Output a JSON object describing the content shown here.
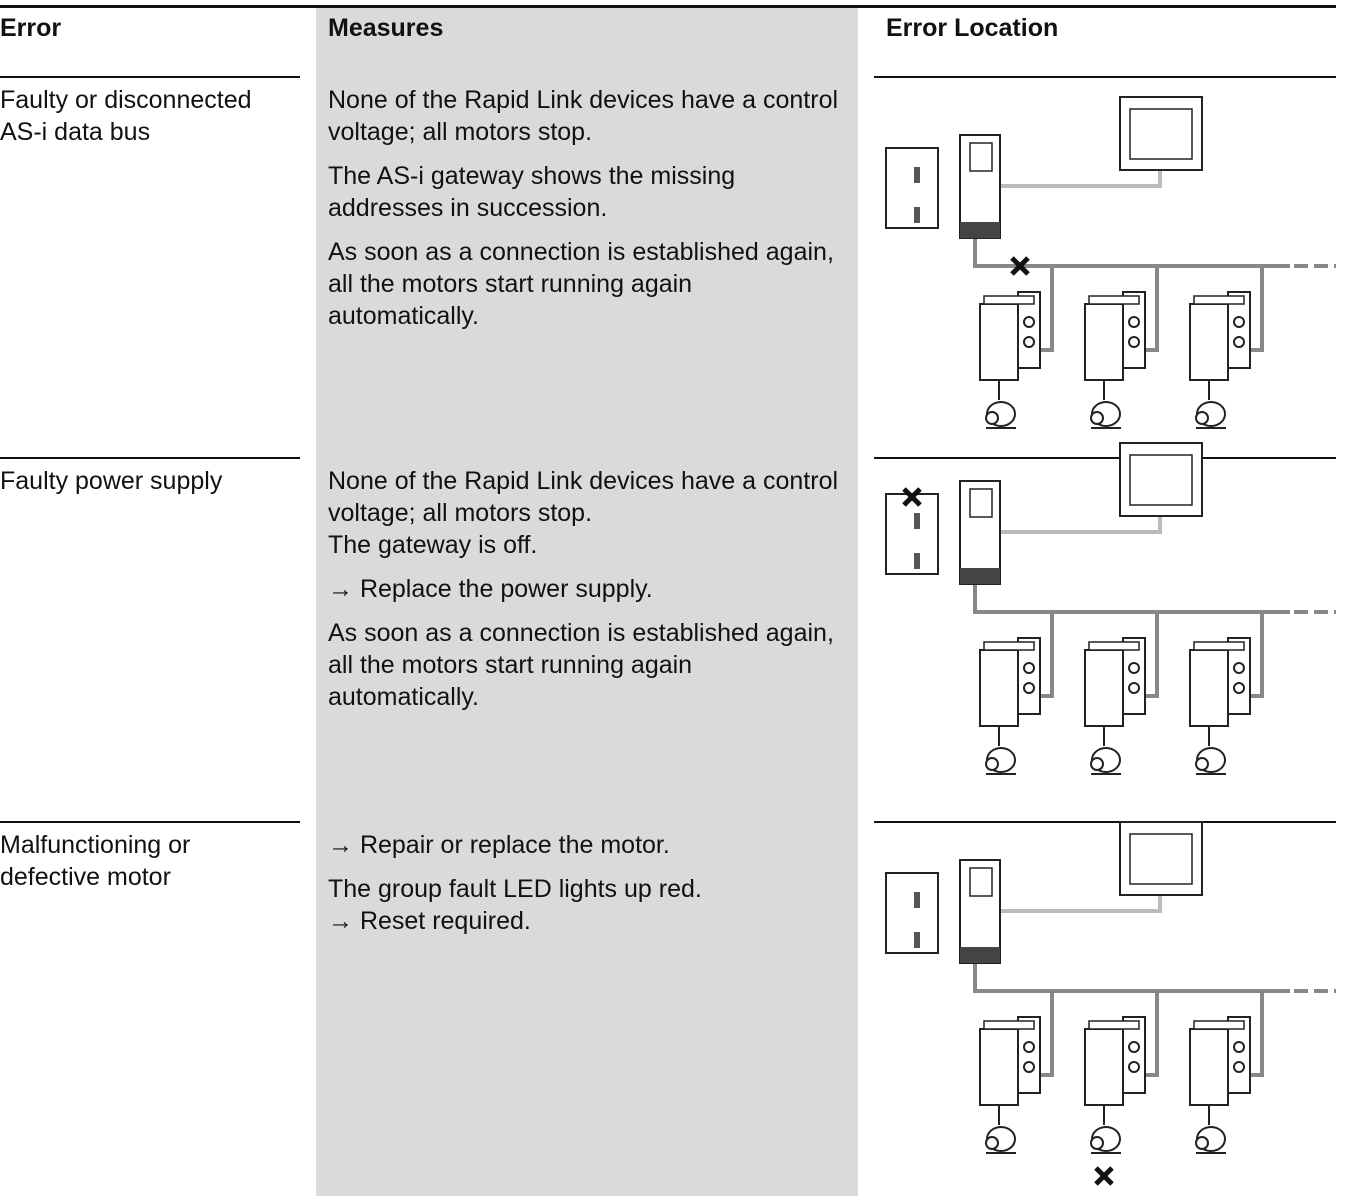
{
  "table": {
    "header": [
      "Error",
      "Measures",
      "Error Location"
    ],
    "rows": [
      {
        "error": "Faulty or disconnected AS-i data bus",
        "measures": [
          [
            "None of the Rapid Link devices have a control voltage; all motors stop."
          ],
          [
            "The AS-i gateway shows the missing addresses in succession."
          ],
          [
            "As soon as a connection is established again, all the motors start running again automatically."
          ]
        ]
      },
      {
        "error": "Faulty power supply",
        "measures": [
          [
            "None of the Rapid Link devices have a control voltage; all motors stop.",
            "The gateway is off."
          ],
          [
            "→ Replace the power supply."
          ],
          [
            "As soon as a connection is established again, all the motors start running again automatically."
          ]
        ]
      },
      {
        "error": "Malfunctioning or defective motor",
        "measures": [
          [
            "→ Repair or replace the motor."
          ],
          [
            "The group fault LED lights up red.",
            "→ Reset required."
          ]
        ]
      }
    ]
  }
}
